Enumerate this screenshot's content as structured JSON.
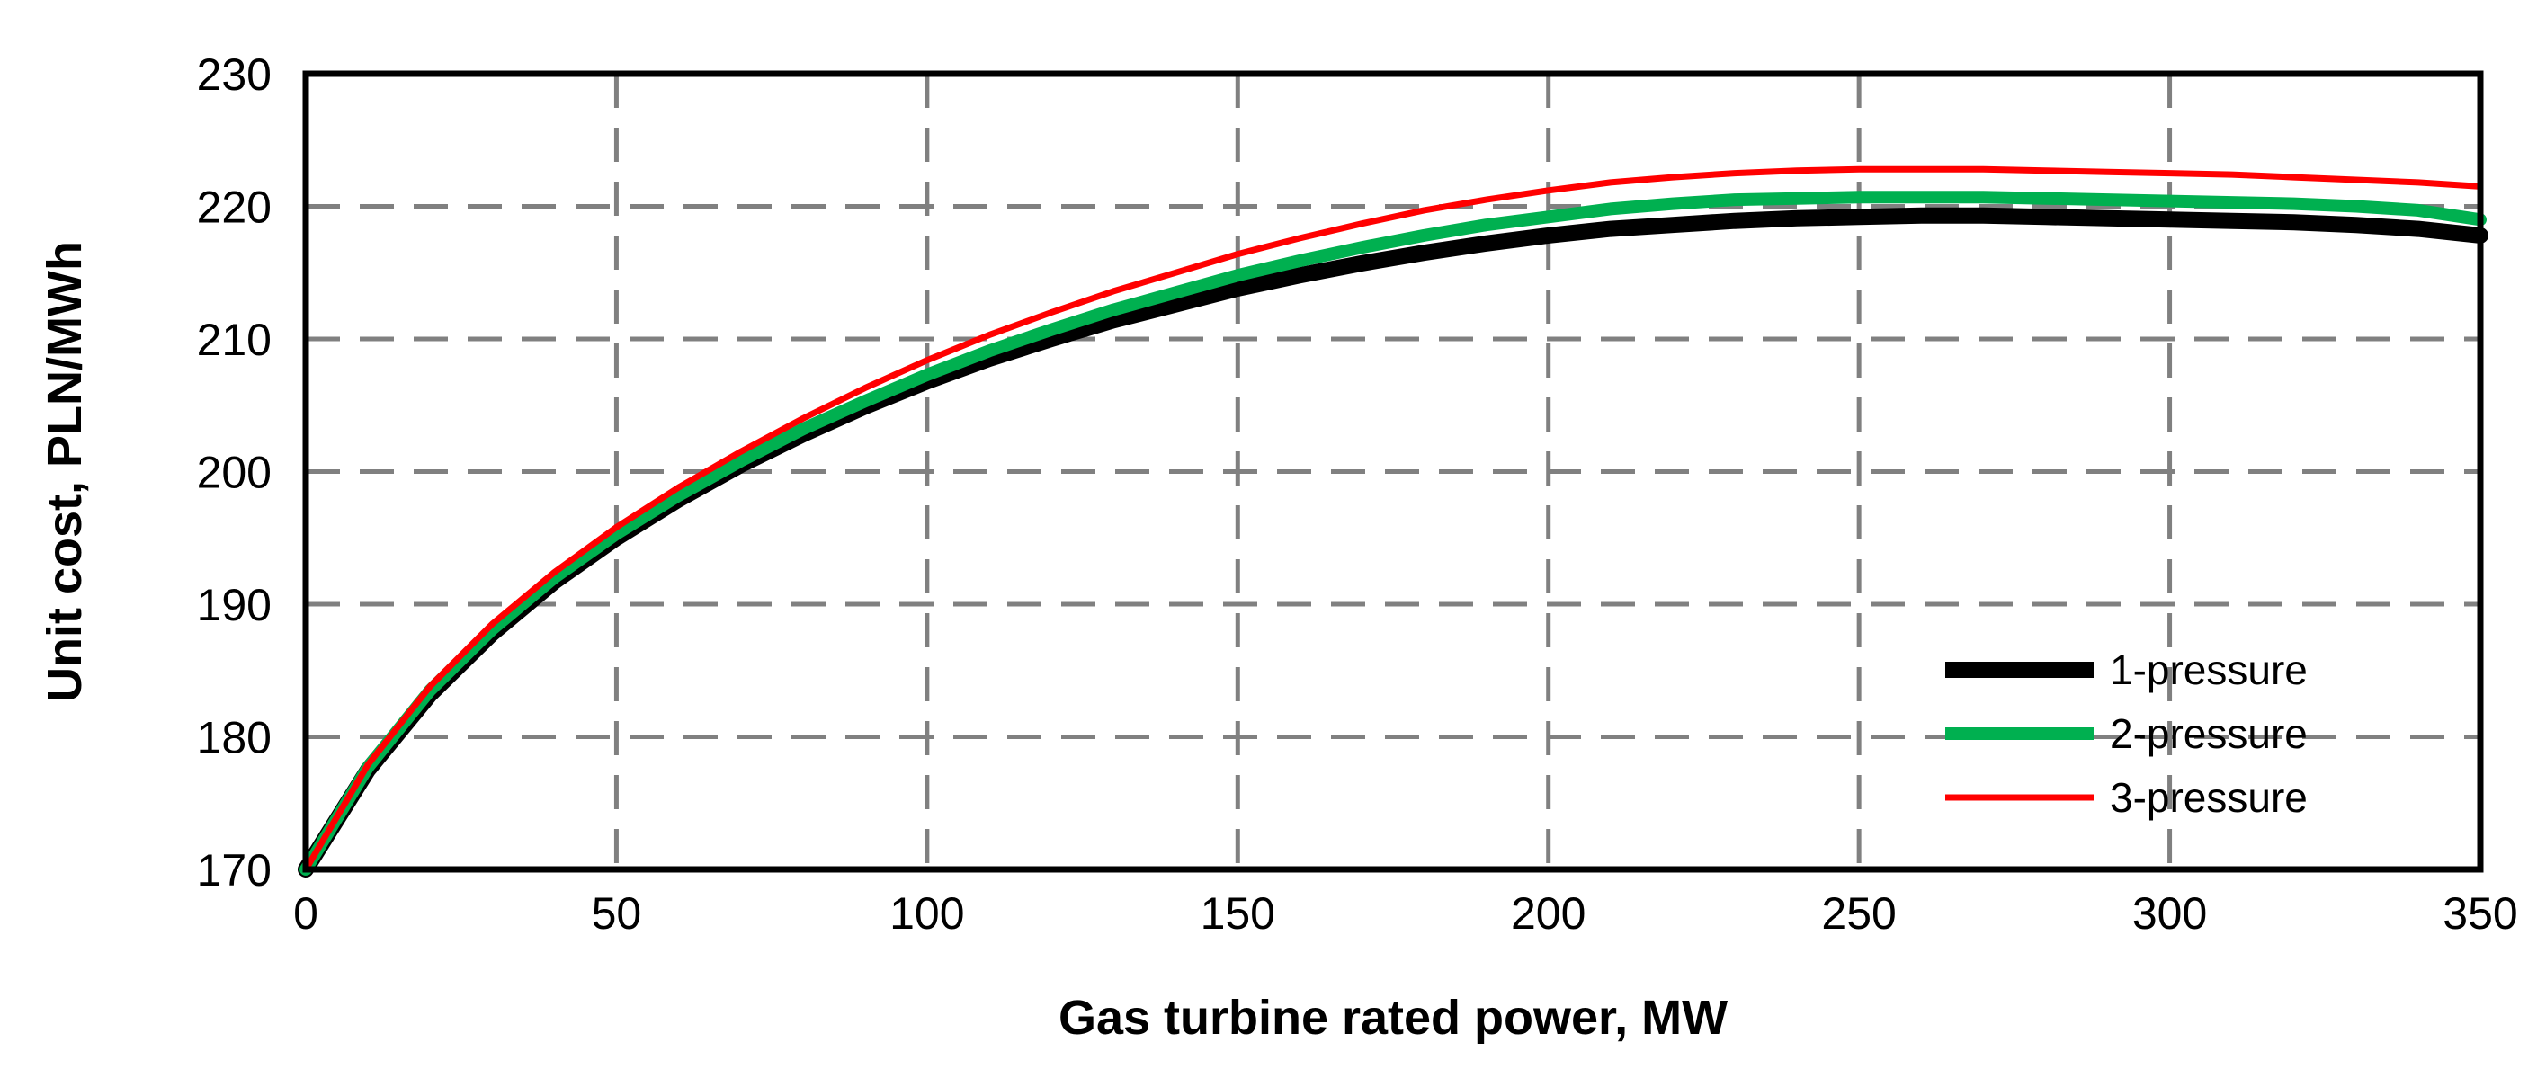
{
  "chart_data": {
    "type": "line",
    "title": "",
    "xlabel": "Gas turbine rated power, MW",
    "ylabel": "Unit cost, PLN/MWh",
    "xlim": [
      0,
      350
    ],
    "ylim": [
      170,
      230
    ],
    "xticks": [
      0,
      50,
      100,
      150,
      200,
      250,
      300,
      350
    ],
    "yticks": [
      170,
      180,
      190,
      200,
      210,
      220,
      230
    ],
    "grid": true,
    "legend_position": "bottom-right",
    "x": [
      0,
      10,
      20,
      30,
      40,
      50,
      60,
      70,
      80,
      90,
      100,
      110,
      120,
      130,
      140,
      150,
      160,
      170,
      180,
      190,
      200,
      210,
      220,
      230,
      240,
      250,
      260,
      270,
      280,
      290,
      300,
      310,
      320,
      330,
      340,
      350
    ],
    "series": [
      {
        "name": "1-pressure",
        "color": "#000000",
        "values": [
          170.0,
          177.5,
          183.2,
          187.8,
          191.7,
          195.0,
          197.9,
          200.5,
          202.8,
          204.9,
          206.8,
          208.5,
          210.0,
          211.4,
          212.6,
          213.8,
          214.8,
          215.7,
          216.5,
          217.2,
          217.8,
          218.3,
          218.6,
          218.9,
          219.1,
          219.2,
          219.3,
          219.3,
          219.2,
          219.1,
          219.0,
          218.9,
          218.8,
          218.6,
          218.3,
          217.8
        ]
      },
      {
        "name": "2-pressure",
        "color": "#00B050",
        "values": [
          170.0,
          177.7,
          183.5,
          188.1,
          192.0,
          195.3,
          198.2,
          200.8,
          203.2,
          205.3,
          207.3,
          209.1,
          210.7,
          212.2,
          213.5,
          214.8,
          215.9,
          216.9,
          217.8,
          218.6,
          219.2,
          219.8,
          220.2,
          220.5,
          220.6,
          220.7,
          220.7,
          220.7,
          220.6,
          220.5,
          220.4,
          220.3,
          220.2,
          220.0,
          219.7,
          219.0
        ]
      },
      {
        "name": "3-pressure",
        "color": "#FF0000",
        "values": [
          170.0,
          177.9,
          183.8,
          188.5,
          192.4,
          195.8,
          198.8,
          201.5,
          204.0,
          206.3,
          208.4,
          210.3,
          212.0,
          213.6,
          215.0,
          216.4,
          217.6,
          218.7,
          219.7,
          220.5,
          221.2,
          221.8,
          222.2,
          222.5,
          222.7,
          222.8,
          222.8,
          222.8,
          222.7,
          222.6,
          222.5,
          222.4,
          222.2,
          222.0,
          221.8,
          221.5
        ]
      }
    ]
  }
}
